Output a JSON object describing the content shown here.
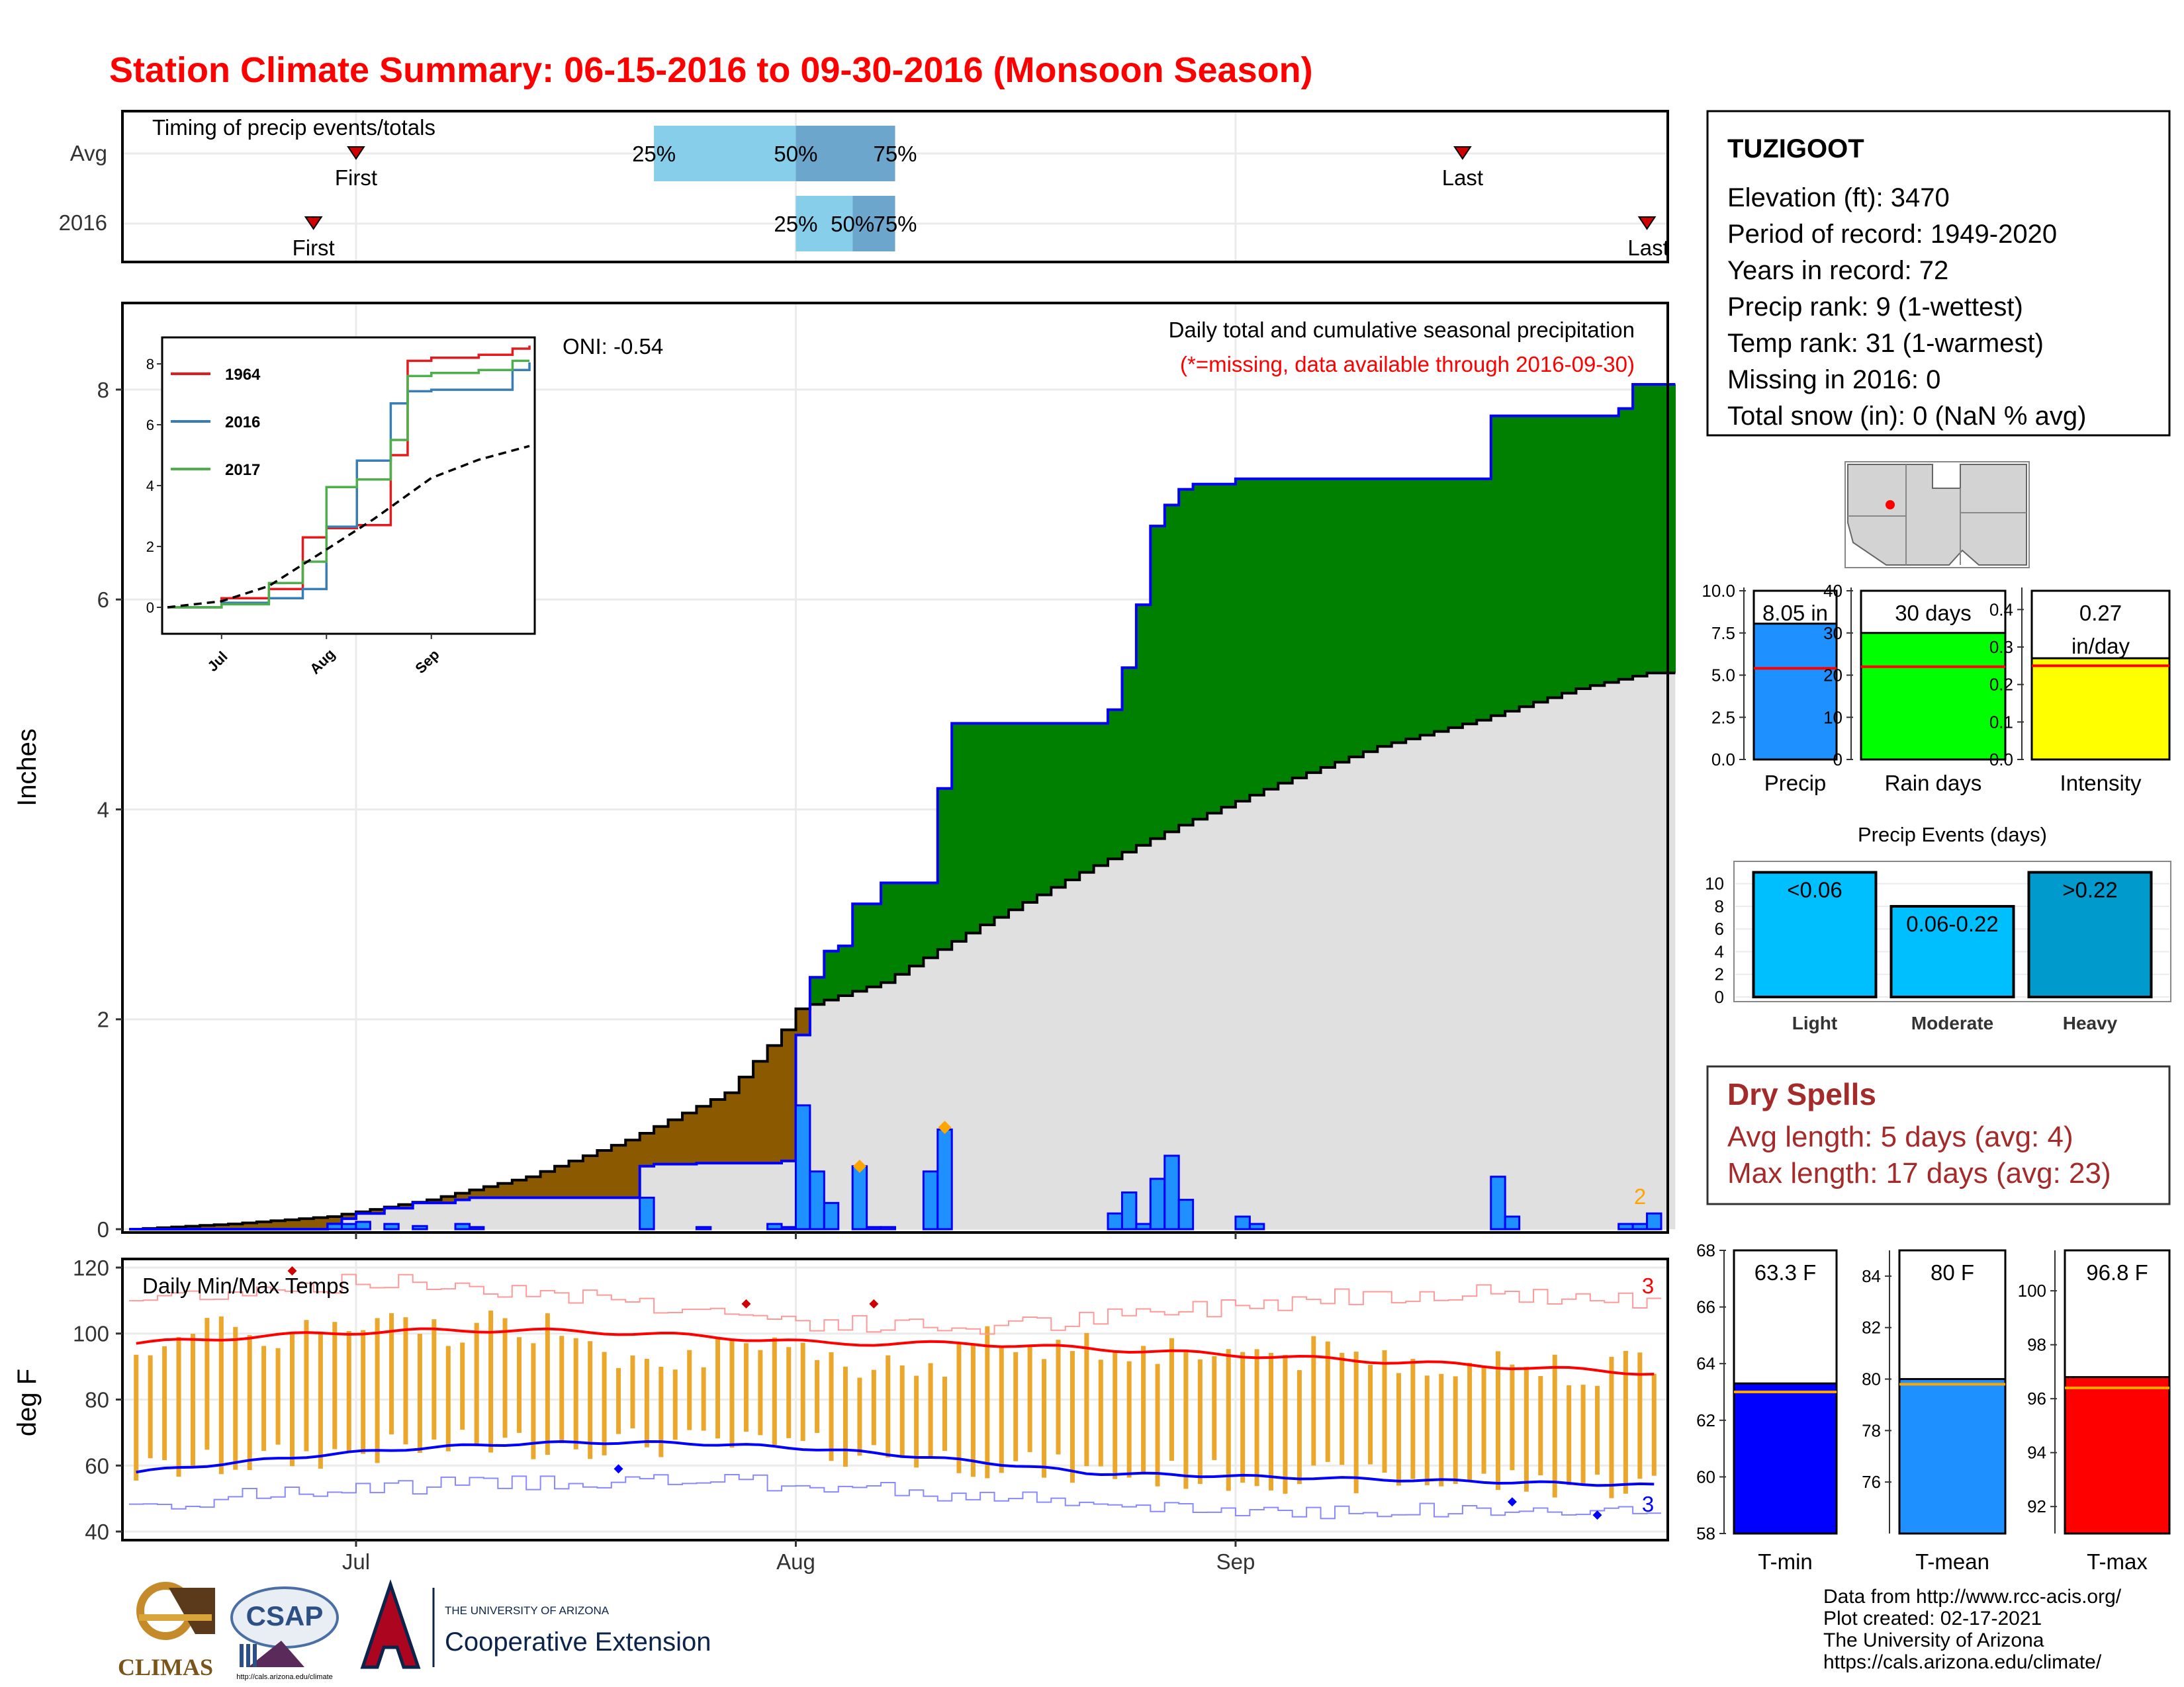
{
  "title": "Station Climate Summary: 06-15-2016 to 09-30-2016 (Monsoon Season)",
  "timing": {
    "title": "Timing of precip events/totals",
    "rows": [
      {
        "name": "Avg",
        "first_label": "First",
        "last_label": "Last",
        "first_date": "2016-07-01",
        "last_date": "2016-09-17",
        "q25_date": "2016-07-22",
        "q50_date": "2016-08-01",
        "q75_date": "2016-08-08"
      },
      {
        "name": "2016",
        "first_label": "First",
        "last_label": "Last",
        "first_date": "2016-06-28",
        "last_date": "2016-09-30",
        "q25_date": "2016-08-01",
        "q50_date": "2016-08-05",
        "q75_date": "2016-08-08"
      }
    ],
    "q_labels": [
      "25%",
      "50%",
      "75%"
    ]
  },
  "precip_panel": {
    "ylabel": "Inches",
    "oni": "ONI: -0.54",
    "caption": "Daily total and cumulative seasonal precipitation",
    "missing_note": "(*=missing, data available through 2016-09-30)",
    "count_label": "2",
    "x_ticks": [
      "Jul",
      "Aug",
      "Sep"
    ],
    "y_ticks": [
      "0",
      "2",
      "4",
      "6",
      "8"
    ]
  },
  "inset": {
    "legend": [
      "1964",
      "2016",
      "2017"
    ],
    "y_ticks": [
      "0",
      "2",
      "4",
      "6",
      "8"
    ],
    "x_ticks": [
      "Jul",
      "Aug",
      "Sep"
    ]
  },
  "temp_panel": {
    "title": "Daily Min/Max Temps",
    "ylabel": "deg F",
    "y_ticks": [
      "40",
      "60",
      "80",
      "100",
      "120"
    ],
    "x_ticks": [
      "Jul",
      "Aug",
      "Sep"
    ],
    "record_high_count": "3",
    "record_low_count": "3"
  },
  "station": {
    "name": "TUZIGOOT",
    "lines": [
      "Elevation (ft): 3470",
      "Period of record: 1949-2020",
      "Years in record: 72",
      "Precip rank: 9 (1-wettest)",
      "Temp rank: 31 (1-warmest)",
      "Missing in 2016: 0",
      "Total snow (in): 0 (NaN % avg)"
    ]
  },
  "mini_bars": [
    {
      "name": "Precip",
      "value_label": "8.05 in",
      "value": 8.05,
      "avg": 5.4,
      "max": 10,
      "ticks": [
        "0.0",
        "2.5",
        "5.0",
        "7.5",
        "10.0"
      ],
      "color": "#1e90ff"
    },
    {
      "name": "Rain days",
      "value_label": "30 days",
      "value": 30,
      "avg": 22,
      "max": 40,
      "ticks": [
        "0",
        "10",
        "20",
        "30",
        "40"
      ],
      "color": "#00ff00"
    },
    {
      "name": "Intensity",
      "value_label": "0.27 in/day",
      "label_line1": "0.27",
      "label_line2": "in/day",
      "value": 0.27,
      "avg": 0.25,
      "max": 0.45,
      "ticks": [
        "0.0",
        "0.1",
        "0.2",
        "0.3",
        "0.4"
      ],
      "color": "#ffff00"
    }
  ],
  "events": {
    "title": "Precip Events (days)",
    "y_ticks": [
      "0",
      "2",
      "4",
      "6",
      "8",
      "10"
    ],
    "bars": [
      {
        "name": "Light",
        "label": "<0.06",
        "value": 11,
        "color": "#00bfff"
      },
      {
        "name": "Moderate",
        "label": "0.06-0.22",
        "value": 8,
        "color": "#00bfff"
      },
      {
        "name": "Heavy",
        "label": ">0.22",
        "value": 11,
        "color": "#009acd"
      }
    ]
  },
  "dry_spells": {
    "title": "Dry Spells",
    "avg_line": "Avg length: 5 days (avg: 4)",
    "max_line": "Max length: 17 days (avg: 23)"
  },
  "temp_bars": [
    {
      "name": "T-min",
      "value_label": "63.3 F",
      "value": 63.3,
      "avg": 63.0,
      "range": [
        58,
        68
      ],
      "ticks": [
        "58",
        "60",
        "62",
        "64",
        "66",
        "68"
      ],
      "color": "#0000ff"
    },
    {
      "name": "T-mean",
      "value_label": "80 F",
      "value": 80.0,
      "avg": 79.8,
      "range": [
        74,
        85
      ],
      "ticks": [
        "76",
        "78",
        "80",
        "82",
        "84"
      ],
      "color": "#1e90ff"
    },
    {
      "name": "T-max",
      "value_label": "96.8 F",
      "value": 96.8,
      "avg": 96.4,
      "range": [
        91,
        101.5
      ],
      "ticks": [
        "92",
        "94",
        "96",
        "98",
        "100"
      ],
      "color": "#ff0000"
    }
  ],
  "footer": [
    "Data from http://www.rcc-acis.org/",
    "Plot created: 02-17-2021",
    "The University of Arizona",
    "https://cals.arizona.edu/climate/"
  ],
  "logos": {
    "climas": "CLIMAS",
    "csap": "CSAP",
    "csap_url": "http://cals.arizona.edu/climate",
    "ua_line1": "THE UNIVERSITY OF ARIZONA",
    "ua_line2": "Cooperative Extension"
  },
  "chart_data": [
    {
      "type": "area",
      "title": "Daily total and cumulative seasonal precipitation",
      "ylabel": "Inches",
      "ylim": [
        0,
        8.8
      ],
      "x_start": "2016-06-15",
      "x_end": "2016-09-30",
      "series": [
        {
          "name": "2016 cumulative",
          "x": [
            "06-15",
            "06-29",
            "06-30",
            "07-01",
            "07-03",
            "07-05",
            "07-08",
            "07-09",
            "07-21",
            "07-22",
            "07-25",
            "07-31",
            "08-01",
            "08-02",
            "08-03",
            "08-04",
            "08-05",
            "08-07",
            "08-08",
            "08-11",
            "08-12",
            "08-22",
            "08-23",
            "08-24",
            "08-25",
            "08-26",
            "08-27",
            "08-28",
            "08-29",
            "09-01",
            "09-02",
            "09-13",
            "09-14",
            "09-19",
            "09-27",
            "09-28",
            "09-29",
            "09-30"
          ],
          "values": [
            0.0,
            0.05,
            0.1,
            0.15,
            0.2,
            0.25,
            0.28,
            0.3,
            0.6,
            0.62,
            0.63,
            0.65,
            1.85,
            2.4,
            2.65,
            2.7,
            3.1,
            3.3,
            3.3,
            4.2,
            4.82,
            4.82,
            4.95,
            5.35,
            5.95,
            6.7,
            6.9,
            7.05,
            7.1,
            7.15,
            7.15,
            7.15,
            7.15,
            7.75,
            7.75,
            7.82,
            8.05,
            8.05
          ]
        },
        {
          "name": "Average cumulative",
          "x": [
            "06-15",
            "06-22",
            "06-29",
            "07-06",
            "07-13",
            "07-20",
            "07-27",
            "07-31",
            "08-01",
            "08-07",
            "08-14",
            "08-21",
            "08-28",
            "09-04",
            "09-11",
            "09-18",
            "09-25",
            "09-30"
          ],
          "values": [
            0.0,
            0.05,
            0.12,
            0.28,
            0.5,
            0.85,
            1.3,
            1.9,
            2.1,
            2.35,
            2.9,
            3.4,
            3.85,
            4.25,
            4.6,
            4.85,
            5.15,
            5.3
          ]
        },
        {
          "name": "Daily precip",
          "x": [
            "06-29",
            "06-30",
            "07-01",
            "07-03",
            "07-05",
            "07-08",
            "07-09",
            "07-21",
            "07-25",
            "07-30",
            "07-31",
            "08-01",
            "08-02",
            "08-03",
            "08-05",
            "08-06",
            "08-07",
            "08-10",
            "08-11",
            "08-23",
            "08-24",
            "08-25",
            "08-26",
            "08-27",
            "08-28",
            "09-01",
            "09-02",
            "09-19",
            "09-20",
            "09-28",
            "09-29",
            "09-30"
          ],
          "values": [
            0.05,
            0.05,
            0.07,
            0.05,
            0.03,
            0.05,
            0.02,
            0.3,
            0.02,
            0.05,
            0.02,
            1.18,
            0.55,
            0.25,
            0.6,
            0.02,
            0.02,
            0.55,
            0.95,
            0.15,
            0.35,
            0.05,
            0.48,
            0.7,
            0.28,
            0.12,
            0.05,
            0.5,
            0.12,
            0.05,
            0.05,
            0.15
          ]
        }
      ]
    },
    {
      "type": "line",
      "title": "",
      "ylim": [
        0,
        8.5
      ],
      "series": [
        {
          "name": "1964",
          "x": [
            "06-15",
            "07-01",
            "07-15",
            "07-25",
            "08-01",
            "08-10",
            "08-20",
            "08-25",
            "09-01",
            "09-15",
            "09-25",
            "09-30"
          ],
          "values": [
            0.0,
            0.3,
            0.6,
            2.3,
            2.6,
            2.7,
            5.0,
            8.1,
            8.2,
            8.3,
            8.5,
            8.6
          ]
        },
        {
          "name": "2016",
          "x": [
            "06-15",
            "07-01",
            "07-15",
            "07-25",
            "08-01",
            "08-10",
            "08-20",
            "08-25",
            "09-01",
            "09-15",
            "09-25",
            "09-30"
          ],
          "values": [
            0.0,
            0.15,
            0.3,
            0.6,
            2.65,
            4.82,
            6.7,
            7.1,
            7.15,
            7.15,
            7.8,
            8.05
          ]
        },
        {
          "name": "2017",
          "x": [
            "06-15",
            "07-01",
            "07-15",
            "07-25",
            "08-01",
            "08-10",
            "08-20",
            "08-25",
            "09-01",
            "09-15",
            "09-25",
            "09-30"
          ],
          "values": [
            0.0,
            0.1,
            0.8,
            1.5,
            3.95,
            4.2,
            5.5,
            7.6,
            7.7,
            7.8,
            8.1,
            8.1
          ]
        },
        {
          "name": "Average",
          "x": [
            "06-15",
            "07-01",
            "07-15",
            "08-01",
            "08-15",
            "09-01",
            "09-15",
            "09-30"
          ],
          "values": [
            0.0,
            0.2,
            0.7,
            1.9,
            2.9,
            4.25,
            4.85,
            5.3
          ]
        }
      ]
    },
    {
      "type": "bar",
      "title": "Daily Min/Max Temps",
      "ylabel": "deg F",
      "ylim": [
        38,
        122
      ],
      "avg_max_range": [
        88,
        101
      ],
      "avg_min_range": [
        54,
        67
      ],
      "record_high_range": [
        104,
        120
      ],
      "record_low_range": [
        42,
        62
      ]
    },
    {
      "type": "bar",
      "categories": [
        "Precip",
        "Rain days",
        "Intensity"
      ],
      "values": [
        8.05,
        30,
        0.27
      ]
    },
    {
      "type": "bar",
      "title": "Precip Events (days)",
      "categories": [
        "Light",
        "Moderate",
        "Heavy"
      ],
      "values": [
        11,
        8,
        11
      ]
    },
    {
      "type": "bar",
      "categories": [
        "T-min",
        "T-mean",
        "T-max"
      ],
      "values": [
        63.3,
        80.0,
        96.8
      ]
    }
  ]
}
